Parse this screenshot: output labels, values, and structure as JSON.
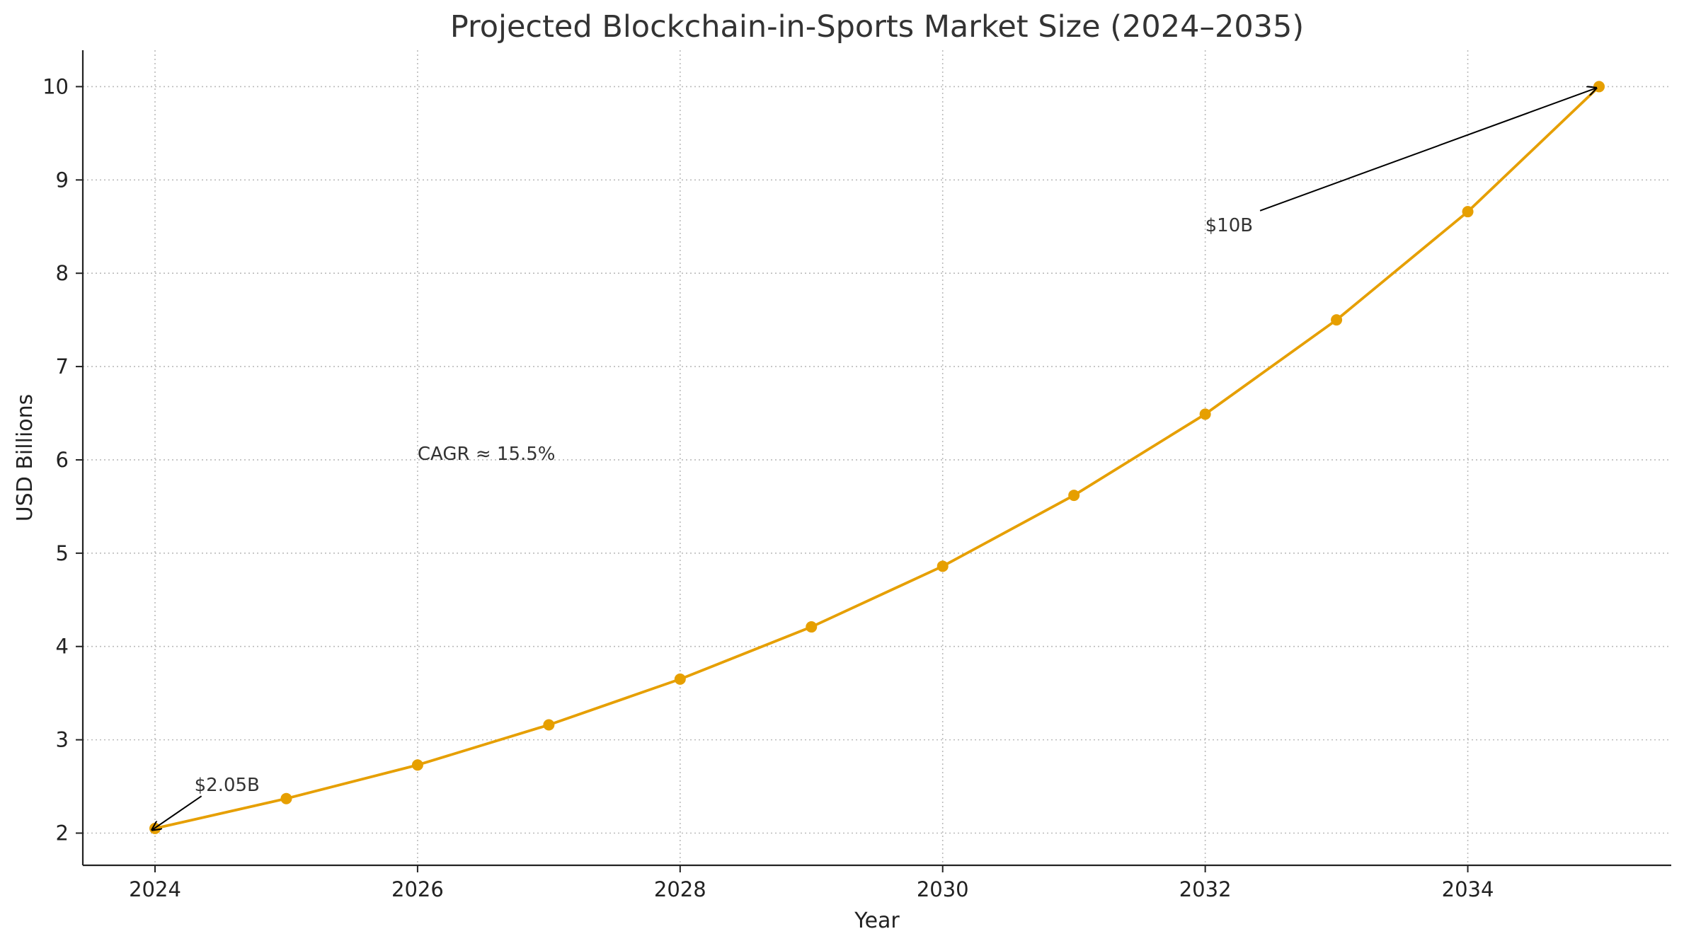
{
  "chart_data": {
    "type": "line",
    "title": "Projected Blockchain-in-Sports Market Size (2024–2035)",
    "xlabel": "Year",
    "ylabel": "USD Billions",
    "x": [
      2024,
      2025,
      2026,
      2027,
      2028,
      2029,
      2030,
      2031,
      2032,
      2033,
      2034,
      2035
    ],
    "series": [
      {
        "values": [
          2.05,
          2.37,
          2.73,
          3.16,
          3.65,
          4.21,
          4.86,
          5.62,
          6.49,
          7.5,
          8.66,
          10.0
        ],
        "color": "#E69F00",
        "marker": "circle"
      }
    ],
    "xlim": [
      2023.45,
      2035.55
    ],
    "ylim": [
      1.655,
      10.39
    ],
    "xticks": [
      2024,
      2026,
      2028,
      2030,
      2032,
      2034
    ],
    "yticks": [
      2,
      3,
      4,
      5,
      6,
      7,
      8,
      9,
      10
    ],
    "grid": true,
    "grid_style": "dotted",
    "annotations": [
      {
        "text": "$2.05B",
        "xy": [
          2024,
          2.05
        ],
        "xytext": [
          2024.3,
          2.45
        ],
        "arrow": true
      },
      {
        "text": "$10B",
        "xy": [
          2035,
          10.0
        ],
        "xytext": [
          2032,
          8.45
        ],
        "arrow": true
      },
      {
        "text": "CAGR ≈ 15.5%",
        "xytext": [
          2026,
          6.0
        ],
        "arrow": false
      }
    ]
  }
}
